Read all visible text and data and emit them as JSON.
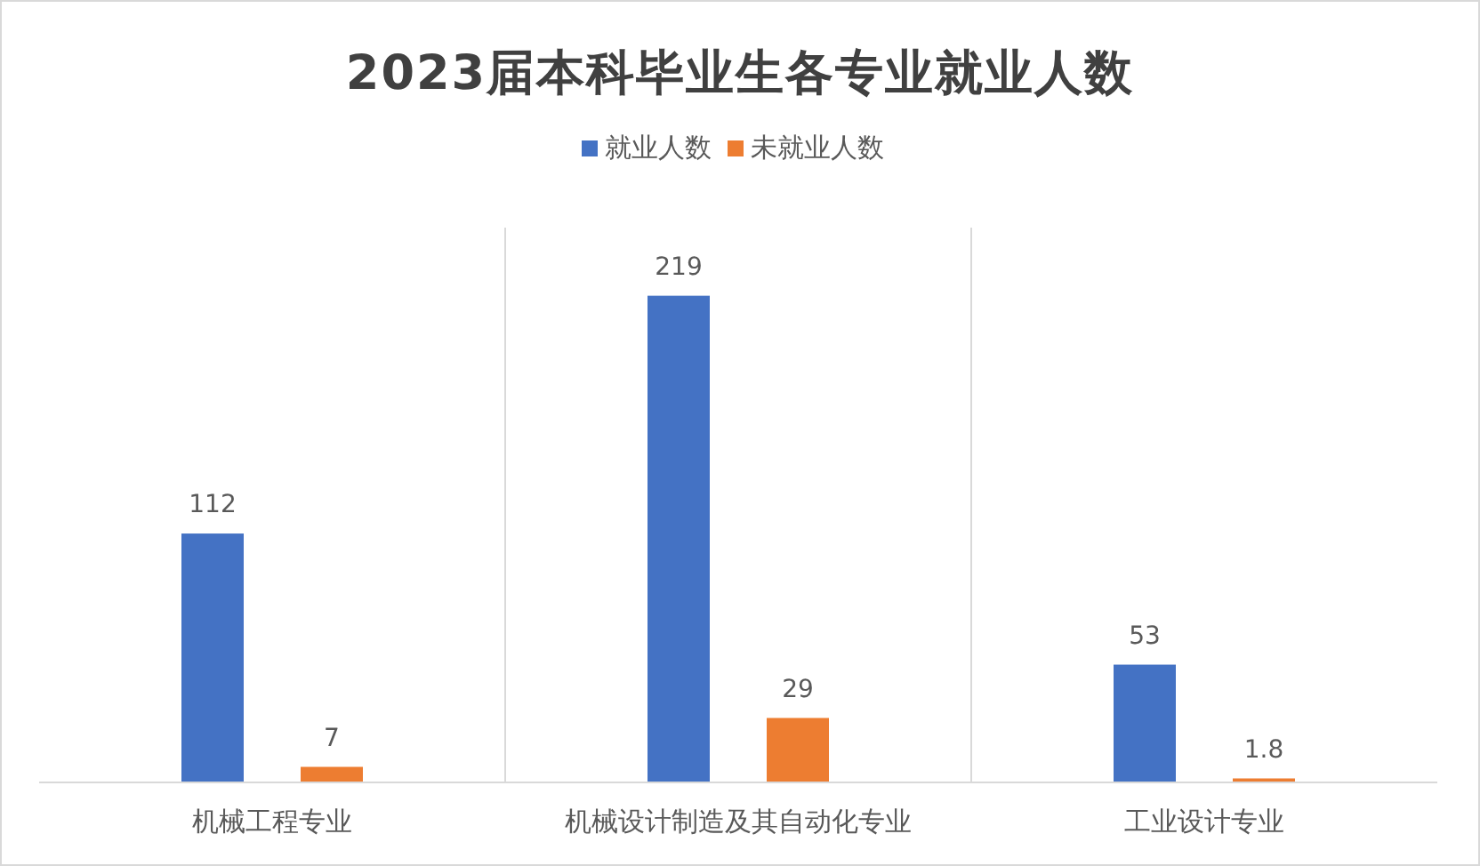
{
  "chart_data": {
    "type": "bar",
    "title": "2023届本科毕业生各专业就业人数",
    "categories": [
      "机械工程专业",
      "机械设计制造及其自动化专业",
      "工业设计专业"
    ],
    "series": [
      {
        "name": "就业人数",
        "color": "#4472c4",
        "values": [
          112,
          219,
          53
        ]
      },
      {
        "name": "未就业人数",
        "color": "#ed7d31",
        "values": [
          7,
          29,
          1.8
        ]
      }
    ],
    "data_labels": true,
    "grid": "x",
    "legend": "top"
  }
}
